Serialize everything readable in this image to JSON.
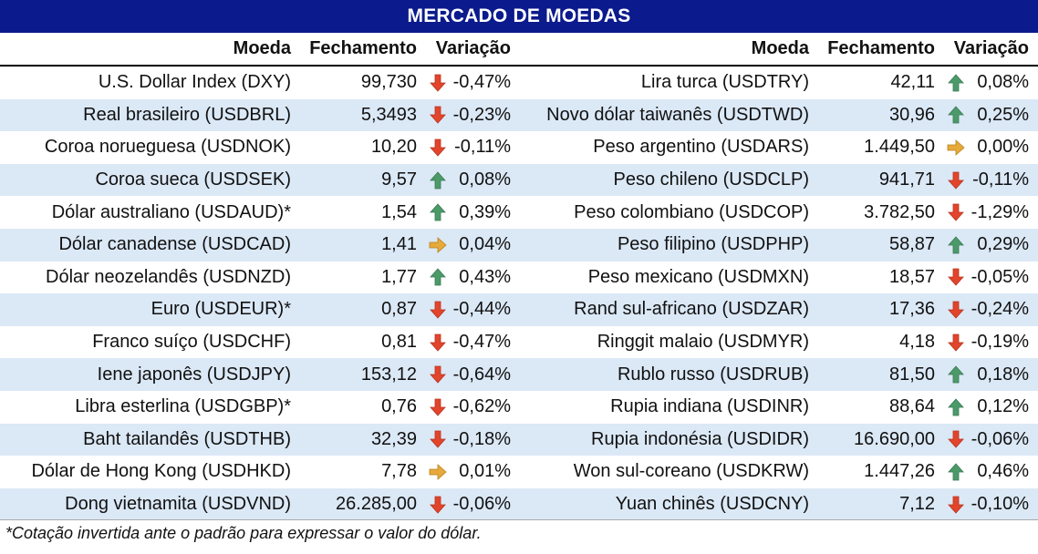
{
  "title": "MERCADO DE MOEDAS",
  "headers": {
    "name": "Moeda",
    "close": "Fechamento",
    "change": "Variação"
  },
  "colors": {
    "header_bg": "#0b1a8c",
    "stripe": "#dbe8f6",
    "up": "#4c9a6a",
    "down": "#e2452c",
    "flat": "#e6a93a"
  },
  "left": [
    {
      "name": "U.S. Dollar Index (DXY)",
      "close": "99,730",
      "dir": "down",
      "change": "-0,47%"
    },
    {
      "name": "Real brasileiro (USDBRL)",
      "close": "5,3493",
      "dir": "down",
      "change": "-0,23%"
    },
    {
      "name": "Coroa norueguesa (USDNOK)",
      "close": "10,20",
      "dir": "down",
      "change": "-0,11%"
    },
    {
      "name": "Coroa sueca (USDSEK)",
      "close": "9,57",
      "dir": "up",
      "change": "0,08%"
    },
    {
      "name": "Dólar australiano (USDAUD)*",
      "close": "1,54",
      "dir": "up",
      "change": "0,39%"
    },
    {
      "name": "Dólar canadense (USDCAD)",
      "close": "1,41",
      "dir": "flat",
      "change": "0,04%"
    },
    {
      "name": "Dólar neozelandês (USDNZD)",
      "close": "1,77",
      "dir": "up",
      "change": "0,43%"
    },
    {
      "name": "Euro (USDEUR)*",
      "close": "0,87",
      "dir": "down",
      "change": "-0,44%"
    },
    {
      "name": "Franco suíço (USDCHF)",
      "close": "0,81",
      "dir": "down",
      "change": "-0,47%"
    },
    {
      "name": "Iene japonês (USDJPY)",
      "close": "153,12",
      "dir": "down",
      "change": "-0,64%"
    },
    {
      "name": "Libra esterlina (USDGBP)*",
      "close": "0,76",
      "dir": "down",
      "change": "-0,62%"
    },
    {
      "name": "Baht tailandês (USDTHB)",
      "close": "32,39",
      "dir": "down",
      "change": "-0,18%"
    },
    {
      "name": "Dólar de Hong Kong (USDHKD)",
      "close": "7,78",
      "dir": "flat",
      "change": "0,01%"
    },
    {
      "name": "Dong vietnamita (USDVND)",
      "close": "26.285,00",
      "dir": "down",
      "change": "-0,06%"
    }
  ],
  "right": [
    {
      "name": "Lira turca (USDTRY)",
      "close": "42,11",
      "dir": "up",
      "change": "0,08%"
    },
    {
      "name": "Novo dólar taiwanês (USDTWD)",
      "close": "30,96",
      "dir": "up",
      "change": "0,25%"
    },
    {
      "name": "Peso argentino (USDARS)",
      "close": "1.449,50",
      "dir": "flat",
      "change": "0,00%"
    },
    {
      "name": "Peso chileno (USDCLP)",
      "close": "941,71",
      "dir": "down",
      "change": "-0,11%"
    },
    {
      "name": "Peso colombiano (USDCOP)",
      "close": "3.782,50",
      "dir": "down",
      "change": "-1,29%"
    },
    {
      "name": "Peso filipino (USDPHP)",
      "close": "58,87",
      "dir": "up",
      "change": "0,29%"
    },
    {
      "name": "Peso mexicano (USDMXN)",
      "close": "18,57",
      "dir": "down",
      "change": "-0,05%"
    },
    {
      "name": "Rand sul-africano (USDZAR)",
      "close": "17,36",
      "dir": "down",
      "change": "-0,24%"
    },
    {
      "name": "Ringgit malaio (USDMYR)",
      "close": "4,18",
      "dir": "down",
      "change": "-0,19%"
    },
    {
      "name": "Rublo russo (USDRUB)",
      "close": "81,50",
      "dir": "up",
      "change": "0,18%"
    },
    {
      "name": "Rupia indiana (USDINR)",
      "close": "88,64",
      "dir": "up",
      "change": "0,12%"
    },
    {
      "name": "Rupia indonésia (USDIDR)",
      "close": "16.690,00",
      "dir": "down",
      "change": "-0,06%"
    },
    {
      "name": "Won sul-coreano (USDKRW)",
      "close": "1.447,26",
      "dir": "up",
      "change": "0,46%"
    },
    {
      "name": "Yuan chinês (USDCNY)",
      "close": "7,12",
      "dir": "down",
      "change": "-0,10%"
    }
  ],
  "footnote": "*Cotação invertida ante o padrão para expressar o valor do dólar."
}
